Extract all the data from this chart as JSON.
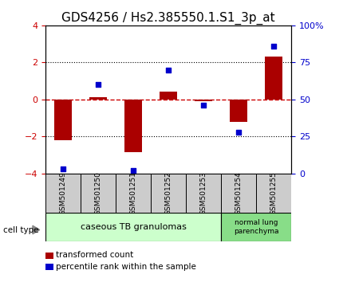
{
  "title": "GDS4256 / Hs2.385550.1.S1_3p_at",
  "samples": [
    "GSM501249",
    "GSM501250",
    "GSM501251",
    "GSM501252",
    "GSM501253",
    "GSM501254",
    "GSM501255"
  ],
  "transformed_count": [
    -2.2,
    0.1,
    -2.85,
    0.4,
    -0.08,
    -1.2,
    2.3
  ],
  "percentile_rank": [
    3.0,
    60.0,
    2.0,
    70.0,
    46.0,
    28.0,
    86.0
  ],
  "ylim_left": [
    -4,
    4
  ],
  "ylim_right": [
    0,
    100
  ],
  "yticks_left": [
    -4,
    -2,
    0,
    2,
    4
  ],
  "yticks_right": [
    0,
    25,
    50,
    75,
    100
  ],
  "yticklabels_right": [
    "0",
    "25",
    "50",
    "75",
    "100%"
  ],
  "bar_color": "#aa0000",
  "dot_color": "#0000cc",
  "zero_line_color": "#cc0000",
  "grid_color": "#000000",
  "group1_label": "caseous TB granulomas",
  "group2_label": "normal lung\nparenchyma",
  "group1_samples": 5,
  "group2_samples": 2,
  "group1_color": "#ccffcc",
  "group2_color": "#88dd88",
  "sample_box_color": "#cccccc",
  "cell_type_label": "cell type",
  "legend_bar_label": "transformed count",
  "legend_dot_label": "percentile rank within the sample",
  "title_fontsize": 11,
  "tick_fontsize": 8,
  "sample_fontsize": 6.5,
  "group_fontsize": 8,
  "legend_fontsize": 7.5
}
